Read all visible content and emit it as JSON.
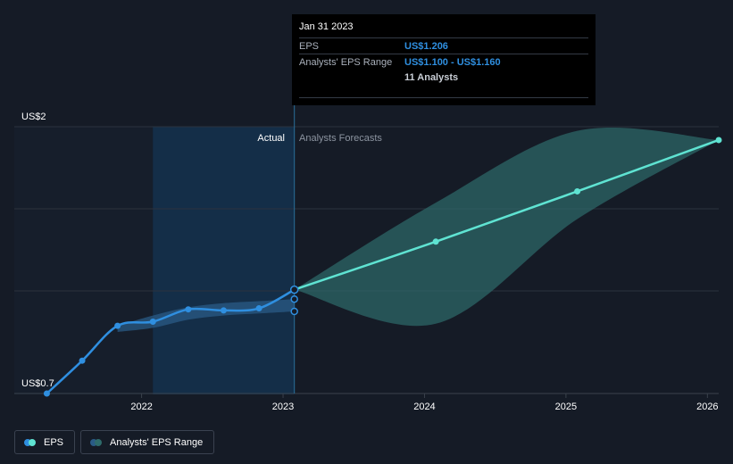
{
  "tooltip": {
    "date": "Jan 31 2023",
    "eps_label": "EPS",
    "eps_value": "US$1.206",
    "range_label": "Analysts' EPS Range",
    "range_value": "US$1.100 - US$1.160",
    "analysts": "11 Analysts"
  },
  "labels": {
    "actual": "Actual",
    "forecast": "Analysts Forecasts"
  },
  "legend": {
    "eps": "EPS",
    "range": "Analysts' EPS Range"
  },
  "colors": {
    "background": "#151b26",
    "actual_line": "#2f8fe0",
    "forecast_line": "#5fe3d2",
    "actual_band": "#2a5b86",
    "forecast_band": "#2e6b6b",
    "highlight_panel": "#14314d"
  },
  "chart_data": {
    "type": "line",
    "ylim": [
      0.7,
      2.0
    ],
    "y_ticks": [
      {
        "value": 2.0,
        "label": "US$2"
      },
      {
        "value": 0.7,
        "label": "US$0.7"
      }
    ],
    "x_ticks": [
      {
        "value": 2022,
        "label": "2022"
      },
      {
        "value": 2023,
        "label": "2023"
      },
      {
        "value": 2024,
        "label": "2024"
      },
      {
        "value": 2025,
        "label": "2025"
      },
      {
        "value": 2026,
        "label": "2026"
      }
    ],
    "xlim": [
      2021.1,
      2026.08
    ],
    "actual_start": 2022.08,
    "today": 2023.08,
    "grid": true,
    "series": [
      {
        "name": "EPS",
        "x": [
          2021.33,
          2021.58,
          2021.83,
          2022.08,
          2022.33,
          2022.58,
          2022.83,
          2023.08
        ],
        "y": [
          0.7,
          0.86,
          1.03,
          1.05,
          1.11,
          1.105,
          1.115,
          1.206
        ]
      },
      {
        "name": "EPS Forecast",
        "x": [
          2023.08,
          2024.08,
          2025.08,
          2026.08
        ],
        "y": [
          1.206,
          1.44,
          1.685,
          1.935
        ]
      }
    ],
    "extra_points": [
      {
        "x": 2023.08,
        "y": 1.16
      },
      {
        "x": 2023.08,
        "y": 1.1
      }
    ],
    "actual_range": {
      "x": [
        2021.83,
        2022.08,
        2022.33,
        2022.58,
        2022.83,
        2023.08
      ],
      "low": [
        1.0,
        1.02,
        1.06,
        1.08,
        1.09,
        1.1
      ],
      "high": [
        1.03,
        1.08,
        1.12,
        1.14,
        1.15,
        1.16
      ]
    },
    "forecast_range": {
      "x": [
        2023.08,
        2024.08,
        2025.08,
        2026.08
      ],
      "low": [
        1.206,
        1.04,
        1.55,
        1.935
      ],
      "high": [
        1.206,
        1.63,
        1.98,
        1.935
      ]
    }
  }
}
